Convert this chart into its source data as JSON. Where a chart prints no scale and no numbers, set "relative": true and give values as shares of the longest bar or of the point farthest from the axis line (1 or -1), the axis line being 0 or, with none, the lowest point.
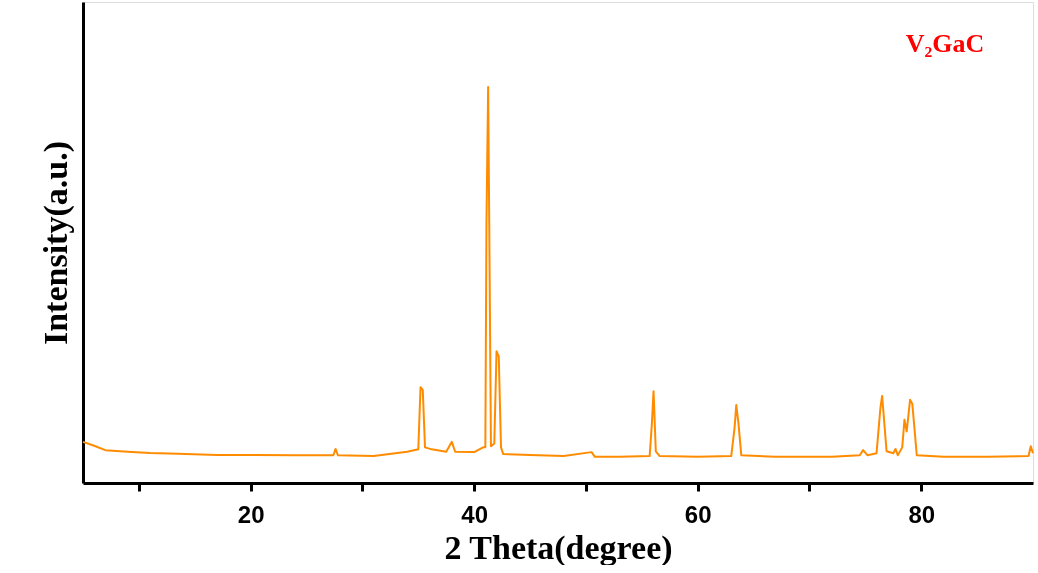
{
  "chart_data": {
    "type": "line",
    "relative": true,
    "xlabel": "2 Theta(degree)",
    "ylabel": "Intensity(a.u.)",
    "annotations": [
      "V₂GaC"
    ],
    "xlim": [
      5,
      90
    ],
    "xticks": [
      {
        "value": 10,
        "label": null
      },
      20,
      {
        "value": 30,
        "label": null
      },
      40,
      {
        "value": 50,
        "label": null
      },
      60,
      {
        "value": 70,
        "label": null
      },
      80
    ],
    "tick_labels": "x",
    "grid": false,
    "marker": "none",
    "line_style": "solid",
    "series": [
      {
        "color": "#ff8c00",
        "x": [
          5.0,
          6,
          7,
          9,
          11,
          13.5,
          17,
          20,
          24,
          27.4,
          27.6,
          27.8,
          31,
          34,
          35.0,
          35.2,
          35.4,
          35.6,
          36.2,
          37.5,
          38.0,
          38.3,
          40.0,
          40.8,
          41.0,
          41.1,
          41.25,
          41.35,
          41.5,
          41.8,
          42.0,
          42.2,
          42.4,
          42.6,
          45,
          48,
          50.5,
          50.8,
          53,
          55.7,
          55.9,
          56.05,
          56.25,
          56.6,
          60,
          63.0,
          63.3,
          63.45,
          63.65,
          63.9,
          67,
          72,
          74.5,
          74.8,
          75.2,
          76.0,
          76.35,
          76.5,
          76.7,
          76.9,
          77.5,
          77.7,
          77.9,
          78.3,
          78.5,
          78.7,
          79.0,
          79.2,
          79.4,
          79.6,
          82,
          86,
          89.6,
          89.8,
          90
        ],
        "values": [
          0.104,
          0.094,
          0.083,
          0.079,
          0.076,
          0.074,
          0.071,
          0.071,
          0.07,
          0.07,
          0.086,
          0.07,
          0.068,
          0.079,
          0.085,
          0.242,
          0.235,
          0.09,
          0.085,
          0.079,
          0.104,
          0.079,
          0.078,
          0.09,
          0.09,
          0.66,
          1.0,
          0.65,
          0.093,
          0.1,
          0.333,
          0.32,
          0.09,
          0.073,
          0.071,
          0.068,
          0.078,
          0.066,
          0.066,
          0.068,
          0.15,
          0.232,
          0.08,
          0.068,
          0.066,
          0.068,
          0.14,
          0.197,
          0.15,
          0.07,
          0.066,
          0.066,
          0.07,
          0.083,
          0.07,
          0.075,
          0.19,
          0.22,
          0.15,
          0.08,
          0.075,
          0.086,
          0.07,
          0.09,
          0.16,
          0.13,
          0.21,
          0.2,
          0.136,
          0.07,
          0.066,
          0.066,
          0.068,
          0.093,
          0.075
        ]
      }
    ]
  }
}
